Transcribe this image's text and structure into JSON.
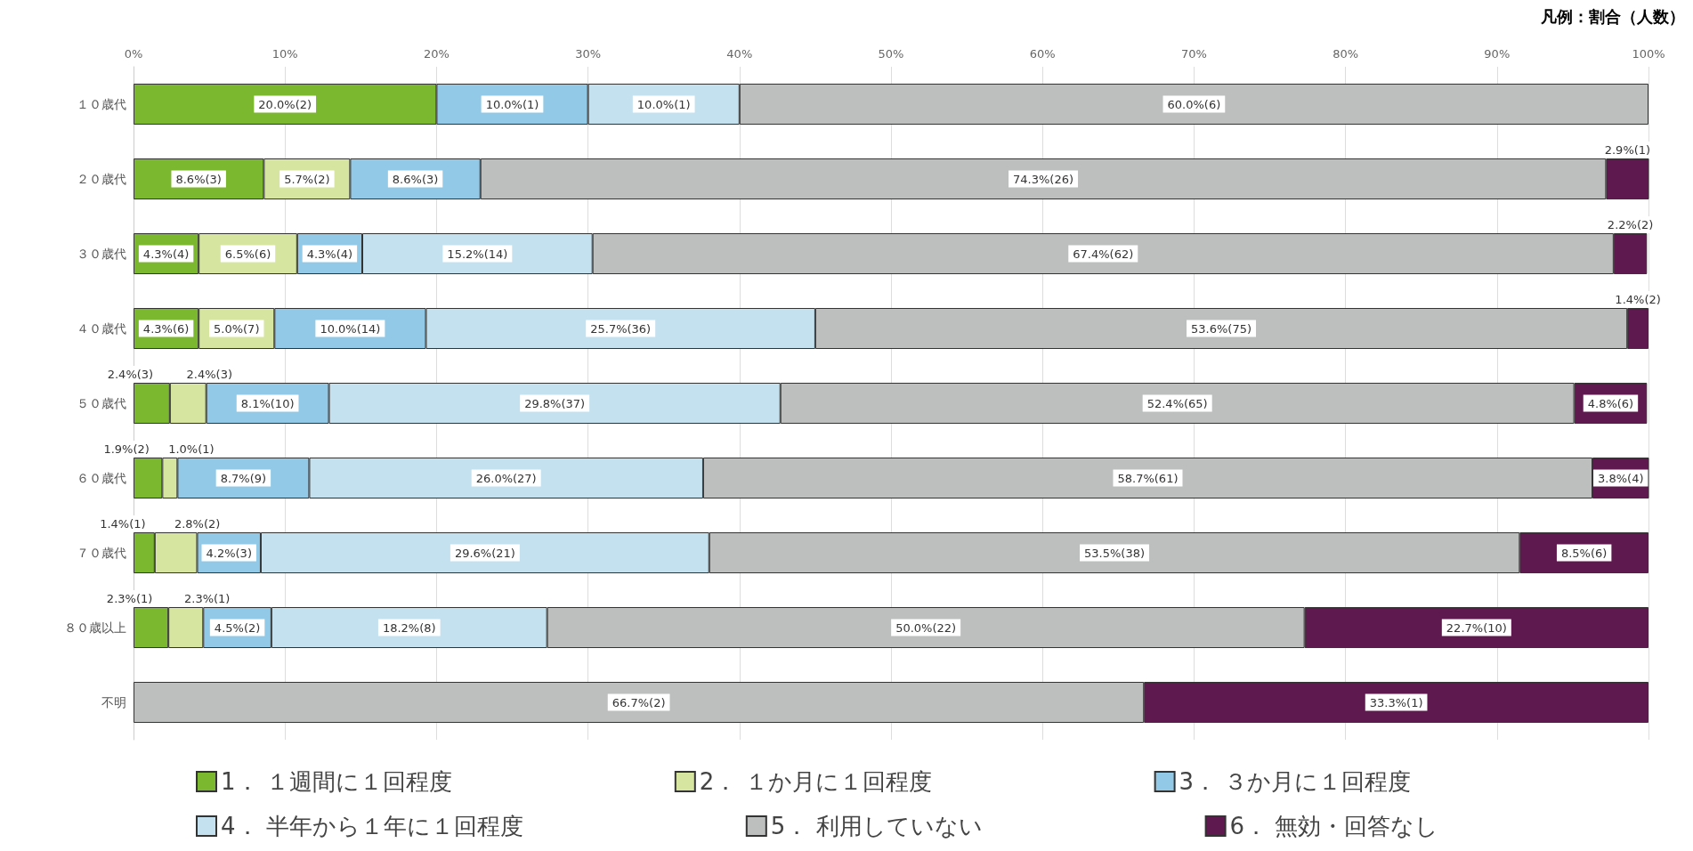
{
  "chart_data": {
    "type": "bar",
    "orientation": "horizontal",
    "stacked": true,
    "annotations": [
      "凡例：割合（人数）"
    ],
    "categories": [
      "１０歳代",
      "２０歳代",
      "３０歳代",
      "４０歳代",
      "５０歳代",
      "６０歳代",
      "７０歳代",
      "８０歳以上",
      "不明"
    ],
    "xlim": [
      0,
      100
    ],
    "xticks": [
      {
        "value": 0,
        "label": "0%"
      },
      {
        "value": 10,
        "label": "10%"
      },
      {
        "value": 20,
        "label": "20%"
      },
      {
        "value": 30,
        "label": "30%"
      },
      {
        "value": 40,
        "label": "40%"
      },
      {
        "value": 50,
        "label": "50%"
      },
      {
        "value": 60,
        "label": "60%"
      },
      {
        "value": 70,
        "label": "70%"
      },
      {
        "value": 80,
        "label": "80%"
      },
      {
        "value": 90,
        "label": "90%"
      },
      {
        "value": 100,
        "label": "100%"
      }
    ],
    "grid": "x",
    "legend": "bottom",
    "series": [
      {
        "name": "1． １週間に１回程度",
        "color": "#7cb82f",
        "values": [
          20.0,
          8.6,
          4.3,
          4.3,
          2.4,
          1.9,
          1.4,
          2.3,
          null
        ],
        "value_labels": [
          "20.0%(2)",
          "8.6%(3)",
          "4.3%(4)",
          "4.3%(6)",
          "2.4%(3)",
          "1.9%(2)",
          "1.4%(1)",
          "2.3%(1)",
          null
        ]
      },
      {
        "name": "2． １か月に１回程度",
        "color": "#d6e6a0",
        "values": [
          null,
          5.7,
          6.5,
          5.0,
          2.4,
          1.0,
          2.8,
          2.3,
          null
        ],
        "value_labels": [
          null,
          "5.7%(2)",
          "6.5%(6)",
          "5.0%(7)",
          "2.4%(3)",
          "1.0%(1)",
          "2.8%(2)",
          "2.3%(1)",
          null
        ]
      },
      {
        "name": "3． ３か月に１回程度",
        "color": "#92c9e6",
        "values": [
          10.0,
          8.6,
          4.3,
          10.0,
          8.1,
          8.7,
          4.2,
          4.5,
          null
        ],
        "value_labels": [
          "10.0%(1)",
          "8.6%(3)",
          "4.3%(4)",
          "10.0%(14)",
          "8.1%(10)",
          "8.7%(9)",
          "4.2%(3)",
          "4.5%(2)",
          null
        ]
      },
      {
        "name": "4． 半年から１年に１回程度",
        "color": "#c4e1f0",
        "values": [
          10.0,
          null,
          15.2,
          25.7,
          29.8,
          26.0,
          29.6,
          18.2,
          null
        ],
        "value_labels": [
          "10.0%(1)",
          null,
          "15.2%(14)",
          "25.7%(36)",
          "29.8%(37)",
          "26.0%(27)",
          "29.6%(21)",
          "18.2%(8)",
          null
        ]
      },
      {
        "name": "5． 利用していない",
        "color": "#bdbfbe",
        "values": [
          60.0,
          74.3,
          67.4,
          53.6,
          52.4,
          58.7,
          53.5,
          50.0,
          66.7
        ],
        "value_labels": [
          "60.0%(6)",
          "74.3%(26)",
          "67.4%(62)",
          "53.6%(75)",
          "52.4%(65)",
          "58.7%(61)",
          "53.5%(38)",
          "50.0%(22)",
          "66.7%(2)"
        ]
      },
      {
        "name": "6． 無効・回答なし",
        "color": "#5e1a4f",
        "values": [
          null,
          2.9,
          2.2,
          1.4,
          4.8,
          3.8,
          8.5,
          22.7,
          33.3
        ],
        "value_labels": [
          null,
          "2.9%(1)",
          "2.2%(2)",
          "1.4%(2)",
          "4.8%(6)",
          "3.8%(4)",
          "8.5%(6)",
          "22.7%(10)",
          "33.3%(1)"
        ]
      }
    ]
  }
}
